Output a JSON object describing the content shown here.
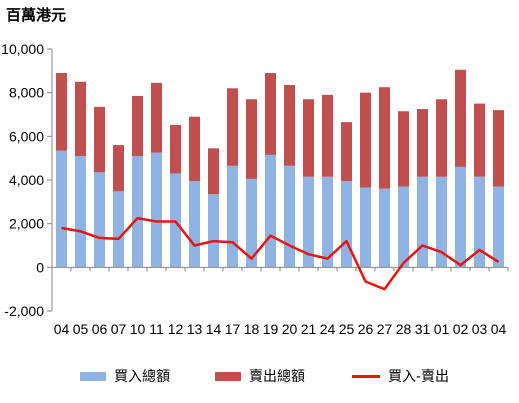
{
  "chart_data": {
    "type": "bar",
    "title": "",
    "unit_label": "百萬港元",
    "xlabel": "",
    "ylabel": "",
    "ylim": [
      -2000,
      10000
    ],
    "yticks": [
      -2000,
      0,
      2000,
      4000,
      6000,
      8000,
      10000
    ],
    "ytick_labels": [
      "-2,000",
      "0",
      "2,000",
      "4,000",
      "6,000",
      "8,000",
      "10,000"
    ],
    "stacked": true,
    "grid": false,
    "legend_position": "bottom",
    "categories": [
      "04",
      "05",
      "06",
      "07",
      "10",
      "11",
      "12",
      "13",
      "14",
      "17",
      "18",
      "19",
      "20",
      "21",
      "24",
      "25",
      "26",
      "27",
      "28",
      "31",
      "01",
      "02",
      "03",
      "04"
    ],
    "series": [
      {
        "name": "買入總額",
        "kind": "bar",
        "color": "#8FB4E3",
        "values": [
          5350,
          5100,
          4350,
          3480,
          5100,
          5250,
          4300,
          3950,
          3350,
          4650,
          4050,
          5150,
          4650,
          4150,
          4150,
          3950,
          3650,
          3600,
          3700,
          4150,
          4150,
          4600,
          4150,
          3700
        ]
      },
      {
        "name": "賣出總額",
        "kind": "bar",
        "color": "#C0504D",
        "values": [
          3550,
          3400,
          3000,
          2120,
          2750,
          3200,
          2220,
          2950,
          2100,
          3550,
          3650,
          3750,
          3700,
          3550,
          3750,
          2700,
          4350,
          4650,
          3450,
          3100,
          3550,
          4450,
          3350,
          3500
        ]
      },
      {
        "name": "買入-賣出",
        "kind": "line",
        "color": "#E8140D",
        "values": [
          1800,
          1650,
          1350,
          1300,
          2250,
          2100,
          2100,
          1000,
          1200,
          1150,
          400,
          1450,
          1000,
          600,
          400,
          1200,
          -650,
          -1000,
          200,
          1000,
          700,
          100,
          800,
          250
        ]
      }
    ]
  }
}
